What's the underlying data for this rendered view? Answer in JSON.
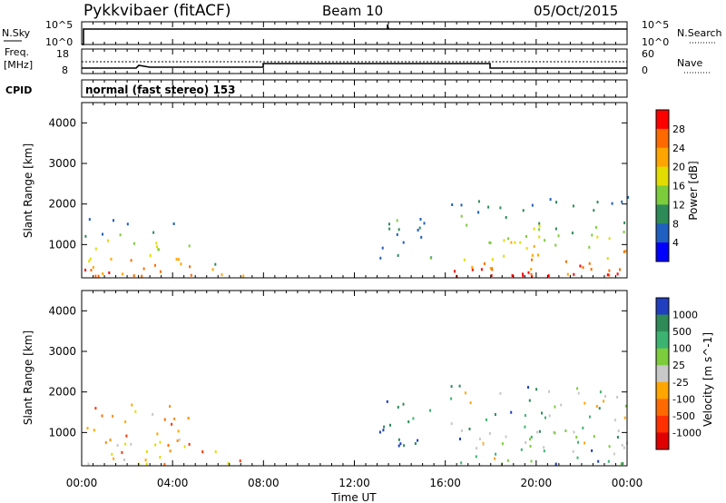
{
  "header": {
    "station": "Pykkvibaer (fitACF)",
    "beam": "Beam 10",
    "date": "05/Oct/2015"
  },
  "noise_panel": {
    "left_label": "N.Sky",
    "right_label": "N.Search",
    "ticks_left": [
      "10^5",
      "10^0"
    ],
    "ticks_right": [
      "10^5",
      "10^0"
    ]
  },
  "freq_panel": {
    "left_label_top": "Freq.",
    "left_label_bottom": "[MHz]",
    "right_label": "Nave",
    "ticks_left": [
      "18",
      "8"
    ],
    "ticks_right": [
      "60",
      "0"
    ]
  },
  "cpid": {
    "label": "CPID",
    "value": "normal (fast stereo) 153"
  },
  "x_axis": {
    "label": "Time UT",
    "ticks": [
      "00:00",
      "04:00",
      "08:00",
      "12:00",
      "16:00",
      "20:00",
      "00:00"
    ]
  },
  "chart_data": [
    {
      "type": "heatmap",
      "title": "",
      "ylabel": "Slant Range [km]",
      "xlabel": "Time UT",
      "xlim": [
        0,
        24
      ],
      "ylim": [
        180,
        4500
      ],
      "y_ticks": [
        1000,
        2000,
        3000,
        4000
      ],
      "colorbar": {
        "label": "Power [dB]",
        "ticks": [
          "28",
          "24",
          "20",
          "16",
          "12",
          "8",
          "4"
        ],
        "colors": [
          "#ff0000",
          "#ff6a00",
          "#ffa500",
          "#e3dc00",
          "#7ccc3c",
          "#2e8b57",
          "#1f5fbf",
          "#0000ff"
        ]
      },
      "scatter_regions": [
        {
          "t0": 0.0,
          "t1": 4.8,
          "r0": 250,
          "r1": 1700,
          "level": "high"
        },
        {
          "t0": 5.0,
          "t1": 7.2,
          "r0": 250,
          "r1": 600,
          "level": "mid"
        },
        {
          "t0": 12.8,
          "t1": 15.5,
          "r0": 700,
          "r1": 1800,
          "level": "low"
        },
        {
          "t0": 16.2,
          "t1": 24.0,
          "r0": 250,
          "r1": 2200,
          "level": "high"
        }
      ]
    },
    {
      "type": "heatmap",
      "title": "",
      "ylabel": "Slant Range [km]",
      "xlabel": "Time UT",
      "xlim": [
        0,
        24
      ],
      "ylim": [
        180,
        4500
      ],
      "y_ticks": [
        1000,
        2000,
        3000,
        4000
      ],
      "colorbar": {
        "label": "Velocity [m s^-1]",
        "ticks": [
          "1000",
          "500",
          "100",
          "25",
          "-25",
          "-100",
          "-500",
          "-1000"
        ],
        "colors": [
          "#1f3fbf",
          "#2e8b57",
          "#3cb371",
          "#7ccc3c",
          "#c8c8c8",
          "#ffa500",
          "#ff6a00",
          "#ff3000",
          "#e00000"
        ]
      },
      "scatter_regions": [
        {
          "t0": 0.0,
          "t1": 4.8,
          "r0": 250,
          "r1": 1800,
          "level": "negative"
        },
        {
          "t0": 5.0,
          "t1": 7.2,
          "r0": 250,
          "r1": 600,
          "level": "negative"
        },
        {
          "t0": 12.8,
          "t1": 15.5,
          "r0": 700,
          "r1": 1800,
          "level": "positive"
        },
        {
          "t0": 16.2,
          "t1": 24.0,
          "r0": 250,
          "r1": 2200,
          "level": "mixed"
        }
      ]
    }
  ]
}
